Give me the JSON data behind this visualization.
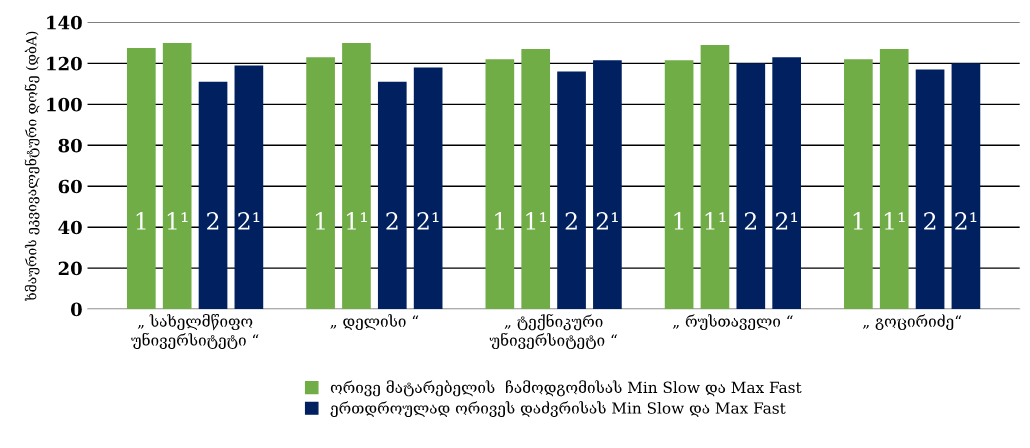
{
  "chart_data": {
    "type": "bar",
    "ylabel": "ხმაურის ეკვივალენტური დონე (დბA)",
    "categories": [
      "„ სახელმწიფო\nუნივერსიტეტი “",
      "„ დელისი “",
      "„ ტექნიკური\nუნივერსიტეტი “",
      "„ რუსთაველი “",
      "„ გოცირიძე“"
    ],
    "series": [
      {
        "name": "ორივე მატარებელის  ჩამოდგომისას Min Slow და Max Fast",
        "color": "#70ad47",
        "values": [
          127.5,
          123,
          122,
          121.5,
          122
        ]
      },
      {
        "color": "#70ad47",
        "values": [
          130,
          130,
          127,
          129,
          127
        ]
      },
      {
        "name": "ერთდროულად ორივეს დაძვრისას Min Slow და Max Fast",
        "color": "#002060",
        "values": [
          111,
          111,
          116,
          120,
          117
        ]
      },
      {
        "color": "#002060",
        "values": [
          119,
          118,
          121.5,
          123,
          120
        ]
      }
    ],
    "annotations": [
      "1",
      "1¹",
      "2",
      "2¹"
    ],
    "ylim": [
      0,
      140
    ],
    "yticks": [
      0,
      20,
      40,
      60,
      80,
      100,
      120,
      140
    ],
    "grid": "y",
    "legend": "bottom"
  }
}
